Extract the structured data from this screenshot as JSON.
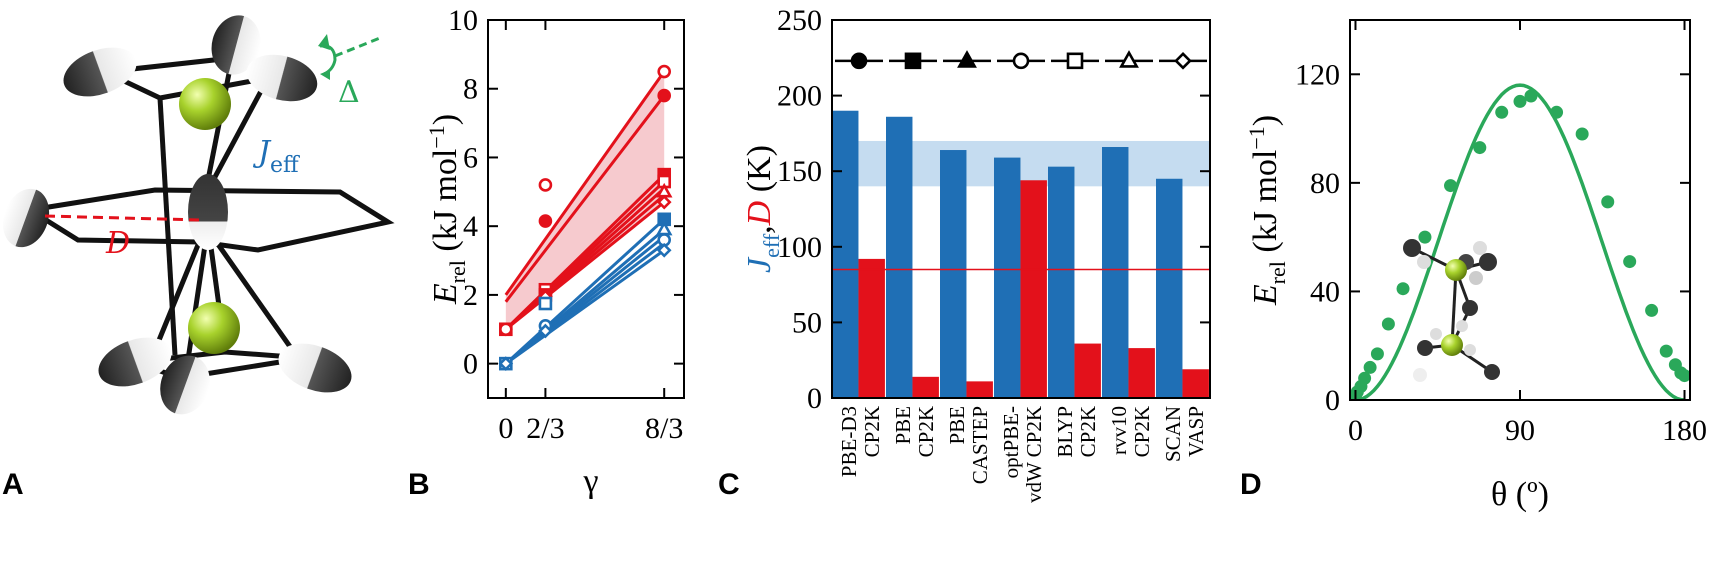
{
  "panels": {
    "a": "A",
    "b": "B",
    "c": "C",
    "d": "D"
  },
  "molecule": {
    "delta_label": "Δ",
    "j_label_main": "J",
    "j_label_sub": "eff",
    "d_label": "D",
    "colors": {
      "j": "#1f6fb5",
      "d": "#e3111b",
      "delta": "#2aa85a",
      "atom": "#9acd32"
    }
  },
  "chart_data": [
    {
      "type": "line",
      "panel": "B",
      "title": "",
      "xlabel": "γ",
      "ylabel_main": "E",
      "ylabel_sub": "rel",
      "ylabel_rest": "(kJ mol",
      "ylabel_sup": "−1",
      "ylabel_close": ")",
      "xlim": [
        -0.3,
        3.0
      ],
      "ylim": [
        -1,
        10
      ],
      "xticks": [
        {
          "value": 0,
          "label": "0"
        },
        {
          "value": 0.6667,
          "label": "2/3"
        },
        {
          "value": 2.6667,
          "label": "8/3"
        }
      ],
      "yticks": [
        0,
        2,
        4,
        6,
        8,
        10
      ],
      "shade_color": "#f3b8bd",
      "red": "#e3111b",
      "blue": "#1f6fb5",
      "red_lines": [
        {
          "x": [
            0,
            2.6667
          ],
          "y": [
            2.0,
            8.5
          ]
        },
        {
          "x": [
            0,
            2.6667
          ],
          "y": [
            1.8,
            7.8
          ]
        },
        {
          "x": [
            0,
            2.6667
          ],
          "y": [
            1.0,
            5.5
          ]
        },
        {
          "x": [
            0,
            2.6667
          ],
          "y": [
            1.0,
            5.3
          ]
        },
        {
          "x": [
            0,
            2.6667
          ],
          "y": [
            1.0,
            5.1
          ]
        },
        {
          "x": [
            0,
            2.6667
          ],
          "y": [
            1.0,
            4.9
          ]
        },
        {
          "x": [
            0,
            2.6667
          ],
          "y": [
            1.0,
            4.7
          ]
        }
      ],
      "blue_lines": [
        {
          "x": [
            0,
            2.6667
          ],
          "y": [
            0.0,
            4.2
          ]
        },
        {
          "x": [
            0,
            2.6667
          ],
          "y": [
            0.0,
            3.9
          ]
        },
        {
          "x": [
            0,
            2.6667
          ],
          "y": [
            0.0,
            3.7
          ]
        },
        {
          "x": [
            0,
            2.6667
          ],
          "y": [
            0.0,
            3.5
          ]
        },
        {
          "x": [
            0,
            2.6667
          ],
          "y": [
            0.0,
            3.3
          ]
        }
      ],
      "shade_bounds": {
        "x": [
          0,
          2.6667
        ],
        "upper": [
          2.0,
          8.5
        ],
        "lower": [
          1.0,
          4.7
        ]
      },
      "red_points": [
        {
          "x": 0.6667,
          "y": 5.2,
          "marker": "circle-open"
        },
        {
          "x": 0.6667,
          "y": 4.15,
          "marker": "circle-filled"
        },
        {
          "x": 0.6667,
          "y": 2.15,
          "marker": "square-open"
        },
        {
          "x": 0.6667,
          "y": 2.0,
          "marker": "square-filled"
        },
        {
          "x": 0.6667,
          "y": 1.95,
          "marker": "diamond-open"
        },
        {
          "x": 2.6667,
          "y": 8.5,
          "marker": "circle-open"
        },
        {
          "x": 2.6667,
          "y": 7.8,
          "marker": "circle-filled"
        },
        {
          "x": 2.6667,
          "y": 5.5,
          "marker": "square-filled"
        },
        {
          "x": 2.6667,
          "y": 5.3,
          "marker": "square-open"
        },
        {
          "x": 2.6667,
          "y": 5.0,
          "marker": "triangle-open"
        },
        {
          "x": 2.6667,
          "y": 4.7,
          "marker": "diamond-open"
        },
        {
          "x": 0,
          "y": 1.0,
          "marker": "square-open"
        },
        {
          "x": 0,
          "y": 1.0,
          "marker": "circle-open"
        }
      ],
      "blue_points": [
        {
          "x": 0.6667,
          "y": 1.75,
          "marker": "square-open"
        },
        {
          "x": 0.6667,
          "y": 1.1,
          "marker": "circle-open"
        },
        {
          "x": 0.6667,
          "y": 0.95,
          "marker": "diamond-open"
        },
        {
          "x": 2.6667,
          "y": 4.2,
          "marker": "square-filled"
        },
        {
          "x": 2.6667,
          "y": 3.9,
          "marker": "triangle-open"
        },
        {
          "x": 2.6667,
          "y": 3.6,
          "marker": "circle-open"
        },
        {
          "x": 2.6667,
          "y": 3.3,
          "marker": "diamond-open"
        },
        {
          "x": 0,
          "y": 0.0,
          "marker": "square-open"
        },
        {
          "x": 0,
          "y": 0.0,
          "marker": "diamond-open"
        }
      ]
    },
    {
      "type": "bar",
      "panel": "C",
      "title": "",
      "xlabel": "",
      "ylabel_parts": [
        {
          "text": "J",
          "color": "#1f6fb5",
          "style": "italic"
        },
        {
          "text": "eff",
          "color": "#1f6fb5",
          "style": "sub"
        },
        {
          "text": ",",
          "color": "#000000",
          "style": "normal"
        },
        {
          "text": "D",
          "color": "#e3111b",
          "style": "italic"
        },
        {
          "text": " (K)",
          "color": "#000000",
          "style": "normal"
        }
      ],
      "ylim": [
        0,
        250
      ],
      "yticks": [
        0,
        50,
        100,
        150,
        200,
        250
      ],
      "categories": [
        {
          "line1": "PBE-D3",
          "line2": "CP2K"
        },
        {
          "line1": "PBE",
          "line2": "CP2K"
        },
        {
          "line1": "PBE",
          "line2": "CASTEP"
        },
        {
          "line1": "optPBE-",
          "line2": "vdW CP2K"
        },
        {
          "line1": "BLYP",
          "line2": "CP2K"
        },
        {
          "line1": "rvv10",
          "line2": "CP2K"
        },
        {
          "line1": "SCAN",
          "line2": "VASP"
        }
      ],
      "series": [
        {
          "name": "J_eff",
          "color": "#1f6fb5",
          "values": [
            190,
            186,
            164,
            159,
            153,
            166,
            145
          ]
        },
        {
          "name": "D",
          "color": "#e3111b",
          "values": [
            92,
            14,
            11,
            144,
            36,
            33,
            19
          ]
        }
      ],
      "band": {
        "low": 140,
        "high": 170,
        "color": "#c5dcf0"
      },
      "reference_line": {
        "value": 85,
        "color": "#e3111b"
      },
      "legend_markers": [
        "circle-filled",
        "square-filled",
        "triangle-filled",
        "circle-open",
        "square-open",
        "triangle-open",
        "diamond-open"
      ],
      "legend_y": 223
    },
    {
      "type": "scatter",
      "panel": "D",
      "title": "",
      "xlabel": "θ (º)",
      "ylabel_main": "E",
      "ylabel_sub": "rel",
      "ylabel_rest": "(kJ mol",
      "ylabel_sup": "−1",
      "ylabel_close": ")",
      "xlim": [
        -3,
        183
      ],
      "ylim": [
        0,
        140
      ],
      "xticks": [
        0,
        90,
        180
      ],
      "yticks": [
        0,
        40,
        80,
        120
      ],
      "color": "#2aa85a",
      "points": {
        "x": [
          0,
          1,
          3,
          5,
          8,
          12,
          18,
          26,
          38,
          52,
          68,
          80,
          90,
          96,
          110,
          124,
          138,
          150,
          162,
          170,
          175,
          178,
          180
        ],
        "y": [
          1,
          3,
          5,
          8,
          12,
          17,
          28,
          41,
          60,
          79,
          93,
          106,
          110,
          112,
          106,
          98,
          73,
          51,
          33,
          18,
          13,
          10,
          9
        ]
      },
      "curve_peak": 116
    }
  ]
}
